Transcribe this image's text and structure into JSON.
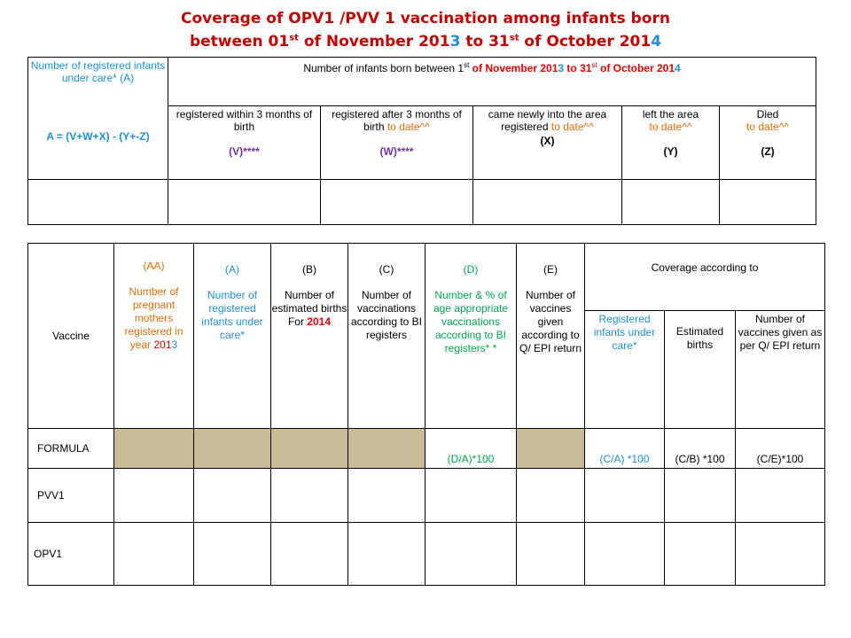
{
  "title": {
    "line1": "Coverage of  OPV1 /PVV 1 vaccination among infants born",
    "line2_a": "between 01",
    "line2_sup1": "st",
    "line2_b": " of  November 201",
    "line2_yr1": "3",
    "line2_c": "  to 31",
    "line2_sup2": "st",
    "line2_d": " of  October 201",
    "line2_yr2": "4"
  },
  "table1": {
    "col_a_label": "Number of  registered infants under care* (A)",
    "col_a_formula": "A = (V+W+X) - (Y+-Z)",
    "span_header_a": "Number of infants born between  1",
    "span_sup1": "st",
    "span_header_b": " of November   201",
    "span_yr1": "3",
    "span_header_c": "  to 31",
    "span_sup2": "st",
    "span_header_d": " of October  201",
    "span_yr2": "4",
    "sub": [
      {
        "text": "registered within 3 months of birth",
        "code": "(V)****"
      },
      {
        "text": "registered after 3 months of birth",
        "suffix": " to date^^",
        "code": "(W)****"
      },
      {
        "text": "came newly into the area registered ",
        "suffix": " to date^^",
        "code": "(X)"
      },
      {
        "text": "left the area",
        "suffix": "to date^^",
        "code": "(Y)"
      },
      {
        "text": "Died",
        "suffix": " to date^^",
        "code": "(Z)"
      }
    ]
  },
  "table2": {
    "vaccine": "Vaccine",
    "aa_code": "(AA)",
    "aa_text": "Number of pregnant mothers registered in year ",
    "aa_yr_a": "201",
    "aa_yr_b": "3",
    "a_code": "(A)",
    "a_text": "Number of registered infants under care*",
    "b_code": "(B)",
    "b_text": "Number of estimated births",
    "b_for": "For ",
    "b_yr": "2014",
    "c_code": "(C)",
    "c_text": "Number of vaccinations according to BI registers",
    "d_code": "(D)",
    "d_text": "Number & % of age appropriate vaccinations according to BI registers* *",
    "e_code": "(E)",
    "e_text": "Number of vaccines given according to Q/ EPI return",
    "coverage": "Coverage according to",
    "cov_1": "Registered infants under care*",
    "cov_2": "Estimated births",
    "cov_3": "Number of vaccines given as per Q/ EPI return",
    "rows": {
      "formula_label": "FORMULA",
      "formula_d": "(D/A)*100",
      "formula_c1": "(C/A) *100",
      "formula_c2": "(C/B) *100",
      "formula_c3": "(C/E)*100",
      "pvv1": "PVV1",
      "opv1": "OPV1"
    }
  },
  "colors": {
    "title_red": "#c00000",
    "blue": "#1f8fd6",
    "orange": "#e36c09",
    "purple": "#7030a0",
    "green": "#00a651",
    "shade": "#c9bd98"
  }
}
